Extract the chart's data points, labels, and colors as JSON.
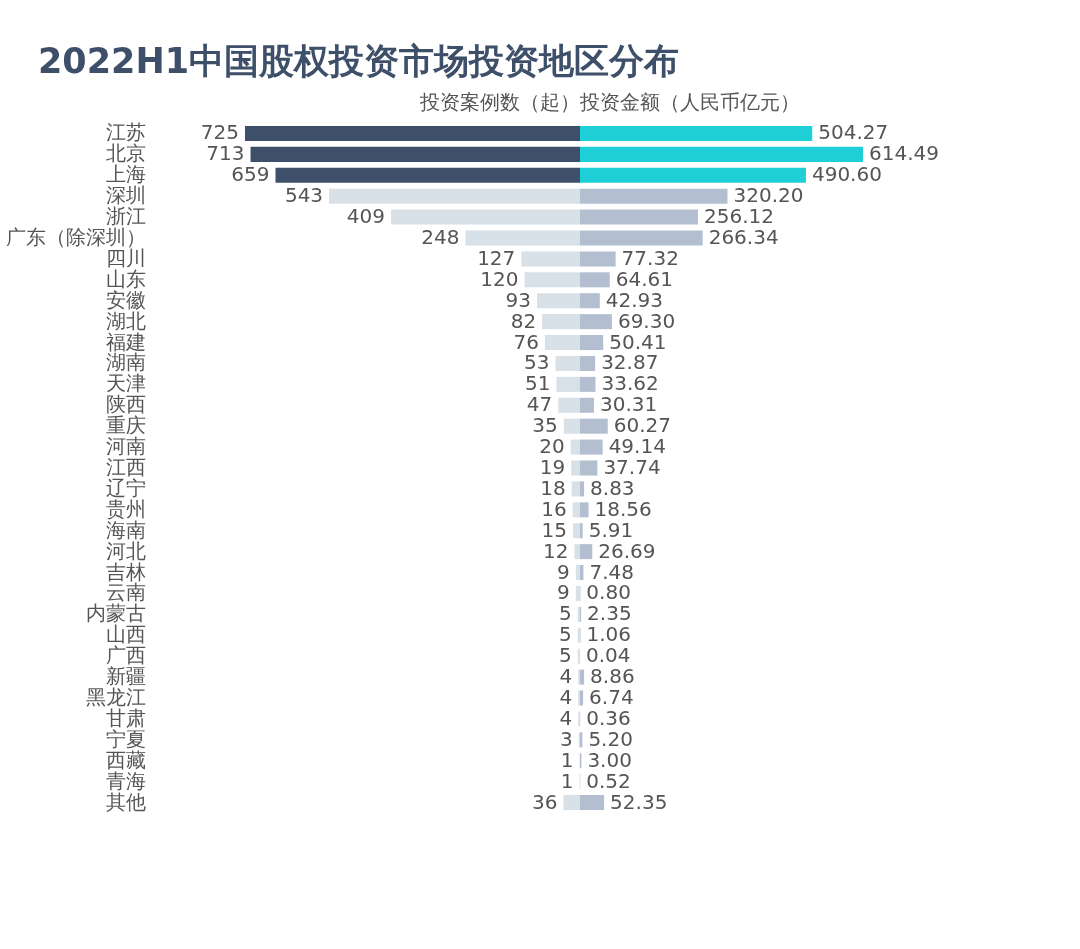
{
  "chart_data": [
    {
      "type": "bar",
      "orientation": "horizontal",
      "title": "2022H1中国股权投资市场投资地区分布",
      "subtitle": "投资案例数（起）",
      "data_labels": true,
      "categories": [
        "江苏",
        "北京",
        "上海",
        "深圳",
        "浙江",
        "广东（除深圳）",
        "四川",
        "山东",
        "安徽",
        "湖北",
        "福建",
        "湖南",
        "天津",
        "陕西",
        "重庆",
        "河南",
        "江西",
        "辽宁",
        "贵州",
        "海南",
        "河北",
        "吉林",
        "云南",
        "内蒙古",
        "山西",
        "广西",
        "新疆",
        "黑龙江",
        "甘肃",
        "宁夏",
        "西藏",
        "青海",
        "其他"
      ],
      "values": [
        725,
        713,
        659,
        543,
        409,
        248,
        127,
        120,
        93,
        82,
        76,
        53,
        51,
        47,
        35,
        20,
        19,
        18,
        16,
        15,
        12,
        9,
        9,
        5,
        5,
        5,
        4,
        4,
        4,
        3,
        1,
        1,
        36
      ],
      "colors": [
        "#3e5069",
        "#3e5069",
        "#3e5069",
        "#d8e0e8",
        "#d8e0e8",
        "#d8e0e8",
        "#d8e0e8",
        "#d8e0e8",
        "#d8e0e8",
        "#d8e0e8",
        "#d8e0e8",
        "#d8e0e8",
        "#d8e0e8",
        "#d8e0e8",
        "#d8e0e8",
        "#d8e0e8",
        "#d8e0e8",
        "#d8e0e8",
        "#d8e0e8",
        "#d8e0e8",
        "#d8e0e8",
        "#d8e0e8",
        "#d8e0e8",
        "#d8e0e8",
        "#d8e0e8",
        "#d8e0e8",
        "#d8e0e8",
        "#d8e0e8",
        "#d8e0e8",
        "#d8e0e8",
        "#d8e0e8",
        "#d8e0e8",
        "#d8e0e8"
      ]
    },
    {
      "type": "bar",
      "orientation": "horizontal",
      "subtitle": "投资金额（人民币亿元）",
      "categories": [
        null,
        null,
        null,
        null,
        null,
        null,
        null,
        null,
        null,
        null,
        null,
        null,
        null,
        null,
        null,
        null,
        null,
        null,
        null,
        null,
        null,
        null,
        null,
        null,
        null,
        null,
        null,
        null,
        null,
        null,
        null,
        null,
        null
      ],
      "values": [
        504.27,
        614.49,
        490.6,
        320.2,
        256.12,
        266.34,
        77.32,
        64.61,
        42.93,
        69.3,
        50.41,
        32.87,
        33.62,
        30.31,
        60.27,
        49.14,
        37.74,
        8.83,
        18.56,
        5.91,
        26.69,
        7.48,
        0.8,
        2.35,
        1.06,
        0.04,
        8.86,
        6.74,
        0.36,
        5.2,
        3.0,
        0.52,
        52.35
      ],
      "value_labels": [
        "504.27",
        "614.49",
        "490.60",
        "320.20",
        "256.12",
        "266.34",
        "77.32",
        "64.61",
        "42.93",
        "69.30",
        "50.41",
        "32.87",
        "33.62",
        "30.31",
        "60.27",
        "49.14",
        "37.74",
        "8.83",
        "18.56",
        "5.91",
        "26.69",
        "7.48",
        "0.80",
        "2.35",
        "1.06",
        "0.04",
        "8.86",
        "6.74",
        "0.36",
        "5.20",
        "3.00",
        "0.52",
        "52.35"
      ],
      "colors": [
        "#1fcfd7",
        "#1fcfd7",
        "#1fcfd7",
        "#b3bfd1",
        "#b3bfd1",
        "#b3bfd1",
        "#b3bfd1",
        "#b3bfd1",
        "#b3bfd1",
        "#b3bfd1",
        "#b3bfd1",
        "#b3bfd1",
        "#b3bfd1",
        "#b3bfd1",
        "#b3bfd1",
        "#b3bfd1",
        "#b3bfd1",
        "#b3bfd1",
        "#b3bfd1",
        "#b3bfd1",
        "#b3bfd1",
        "#b3bfd1",
        "#b3bfd1",
        "#b3bfd1",
        "#b3bfd1",
        "#b3bfd1",
        "#b3bfd1",
        "#b3bfd1",
        "#b3bfd1",
        "#b3bfd1",
        "#b3bfd1",
        "#b3bfd1",
        "#b3bfd1"
      ]
    }
  ]
}
